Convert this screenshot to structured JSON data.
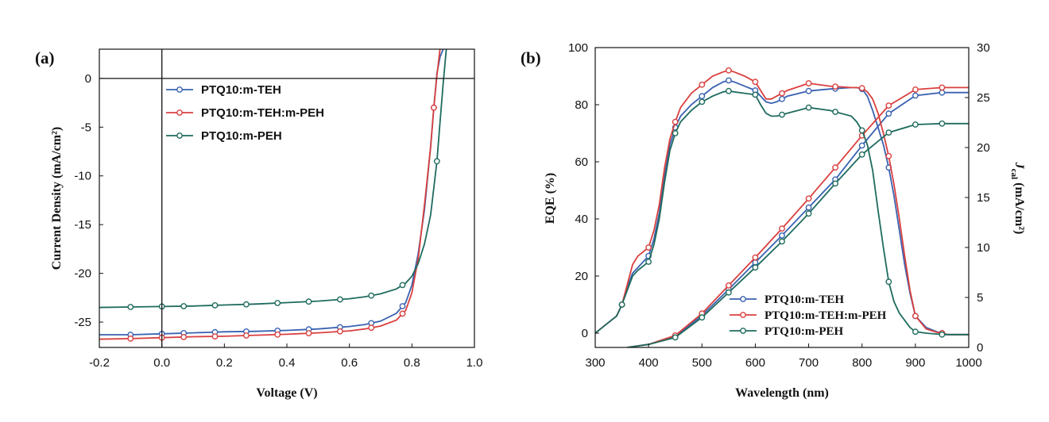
{
  "chart_data": [
    {
      "type": "line",
      "panel_label": "(a)",
      "xlabel": "Voltage (V)",
      "ylabel": "Current Density (mA/cm²)",
      "xlim": [
        -0.2,
        1.0
      ],
      "ylim": [
        -27.6,
        3.0
      ],
      "xticks": [
        -0.2,
        0.0,
        0.2,
        0.4,
        0.6,
        0.8,
        1.0
      ],
      "xtick_labels": [
        "-0.2",
        "0.0",
        "0.2",
        "0.4",
        "0.6",
        "0.8",
        "1.0"
      ],
      "yticks": [
        0,
        -5,
        -10,
        -15,
        -20,
        -25
      ],
      "ytick_labels": [
        "0",
        "-5",
        "-10",
        "-15",
        "-20",
        "-25"
      ],
      "reference_lines": {
        "x": 0,
        "y": 0
      },
      "legend_position": "upper-middle",
      "series": [
        {
          "name": "PTQ10:m-TEH",
          "color": "#3a62b0",
          "x": [
            -0.2,
            -0.1,
            0,
            0.1,
            0.2,
            0.3,
            0.4,
            0.5,
            0.6,
            0.65,
            0.7,
            0.75,
            0.78,
            0.8,
            0.82,
            0.84,
            0.86,
            0.87,
            0.88,
            0.89,
            0.9
          ],
          "y": [
            -26.3,
            -26.3,
            -26.2,
            -26.1,
            -26.0,
            -25.95,
            -25.85,
            -25.7,
            -25.45,
            -25.25,
            -24.9,
            -24.1,
            -23.0,
            -21.2,
            -18.0,
            -13.5,
            -7.0,
            -3.0,
            0.5,
            2.2,
            3.0
          ],
          "marker_x": [
            -0.1,
            0.0,
            0.07,
            0.17,
            0.27,
            0.37,
            0.47,
            0.57,
            0.67,
            0.77,
            0.87
          ]
        },
        {
          "name": "PTQ10:m-TEH:m-PEH",
          "color": "#d9403f",
          "x": [
            -0.2,
            -0.1,
            0,
            0.1,
            0.2,
            0.3,
            0.4,
            0.5,
            0.6,
            0.65,
            0.7,
            0.75,
            0.78,
            0.8,
            0.82,
            0.84,
            0.86,
            0.87,
            0.88,
            0.89
          ],
          "y": [
            -26.75,
            -26.7,
            -26.6,
            -26.5,
            -26.45,
            -26.35,
            -26.25,
            -26.1,
            -25.9,
            -25.7,
            -25.4,
            -24.8,
            -23.8,
            -22.0,
            -18.5,
            -13.0,
            -7.0,
            -3.0,
            0.3,
            3.0
          ],
          "marker_x": [
            -0.1,
            0.0,
            0.07,
            0.17,
            0.27,
            0.37,
            0.47,
            0.57,
            0.67,
            0.77,
            0.87
          ]
        },
        {
          "name": "PTQ10:m-PEH",
          "color": "#1f6b5e",
          "x": [
            -0.2,
            -0.1,
            0,
            0.1,
            0.2,
            0.3,
            0.4,
            0.5,
            0.6,
            0.65,
            0.7,
            0.75,
            0.78,
            0.8,
            0.82,
            0.84,
            0.86,
            0.88,
            0.89,
            0.9,
            0.91
          ],
          "y": [
            -23.5,
            -23.45,
            -23.4,
            -23.35,
            -23.25,
            -23.15,
            -23.0,
            -22.85,
            -22.6,
            -22.4,
            -22.1,
            -21.6,
            -21.0,
            -20.3,
            -19.0,
            -17.0,
            -14.0,
            -8.5,
            -4.5,
            -0.5,
            3.0
          ],
          "marker_x": [
            -0.1,
            0.0,
            0.07,
            0.17,
            0.27,
            0.37,
            0.47,
            0.57,
            0.67,
            0.77,
            0.88
          ]
        }
      ]
    },
    {
      "type": "line",
      "panel_label": "(b)",
      "xlabel": "Wavelength (nm)",
      "ylabel": "EQE (%)",
      "y2label": "J",
      "y2label_sub": "cal",
      "y2label_unit": " (mA/cm²)",
      "xlim": [
        300,
        1000
      ],
      "ylim": [
        -5,
        100
      ],
      "y2lim": [
        0,
        30
      ],
      "xticks": [
        300,
        400,
        500,
        600,
        700,
        800,
        900,
        1000
      ],
      "xtick_labels": [
        "300",
        "400",
        "500",
        "600",
        "700",
        "800",
        "900",
        "1000"
      ],
      "yticks": [
        0,
        20,
        40,
        60,
        80,
        100
      ],
      "ytick_labels": [
        "0",
        "20",
        "40",
        "60",
        "80",
        "100"
      ],
      "y2ticks": [
        0,
        5,
        10,
        15,
        20,
        25,
        30
      ],
      "y2tick_labels": [
        "0",
        "5",
        "10",
        "15",
        "20",
        "25",
        "30"
      ],
      "legend_position": "lower-middle",
      "series": [
        {
          "name": "PTQ10:m-TEH",
          "color": "#3a62b0",
          "x": [
            300,
            320,
            340,
            350,
            360,
            370,
            380,
            400,
            410,
            420,
            430,
            440,
            450,
            460,
            480,
            500,
            520,
            540,
            550,
            560,
            580,
            600,
            610,
            620,
            630,
            640,
            650,
            660,
            700,
            740,
            780,
            790,
            800,
            810,
            820,
            830,
            840,
            850,
            860,
            870,
            880,
            890,
            900,
            920,
            940,
            950,
            960,
            1000
          ],
          "eqe": [
            0,
            3,
            6,
            10,
            16,
            21,
            23,
            27,
            33,
            42,
            55,
            66,
            72,
            76,
            80,
            83,
            86,
            88,
            88.5,
            88,
            86.5,
            85,
            83,
            81,
            80.5,
            81,
            82,
            83,
            84.8,
            85.5,
            86,
            86,
            85.5,
            83,
            78,
            72,
            66,
            58,
            48,
            36,
            24,
            14,
            6,
            2,
            0.5,
            0,
            -0.5,
            -0.5
          ],
          "eqe_marker_x": [
            350,
            400,
            450,
            500,
            550,
            600,
            650,
            700,
            750,
            800,
            850,
            900,
            950
          ],
          "jcal_x": [
            360,
            400,
            450,
            500,
            550,
            600,
            650,
            700,
            750,
            800,
            850,
            900,
            950,
            1000
          ],
          "jcal": [
            0,
            0.3,
            1.1,
            3.2,
            5.8,
            8.5,
            11.2,
            14.0,
            16.8,
            20.2,
            23.4,
            25.2,
            25.5,
            25.5
          ],
          "jcal_marker_x": [
            450,
            500,
            550,
            600,
            650,
            700,
            750,
            800,
            850,
            900,
            950
          ]
        },
        {
          "name": "PTQ10:m-TEH:m-PEH",
          "color": "#d9403f",
          "x": [
            300,
            320,
            340,
            350,
            360,
            370,
            380,
            400,
            410,
            420,
            430,
            440,
            450,
            460,
            480,
            500,
            520,
            540,
            550,
            560,
            580,
            600,
            610,
            620,
            630,
            640,
            650,
            660,
            700,
            740,
            780,
            790,
            800,
            810,
            820,
            830,
            840,
            850,
            860,
            870,
            880,
            890,
            900,
            920,
            940,
            950,
            960,
            1000
          ],
          "eqe": [
            0,
            3,
            6,
            10,
            17,
            24,
            27,
            30,
            36,
            45,
            58,
            68,
            74,
            79,
            84,
            87,
            90,
            91.5,
            92,
            91.5,
            90,
            88,
            85,
            82,
            82,
            83,
            84,
            85,
            87.5,
            86.5,
            86,
            86,
            85.8,
            84.5,
            82,
            77,
            70,
            62,
            52,
            40,
            27,
            15,
            6,
            1.5,
            0.3,
            0,
            -0.5,
            -0.5
          ],
          "eqe_marker_x": [
            350,
            400,
            450,
            500,
            550,
            600,
            650,
            700,
            750,
            800,
            850,
            900,
            950
          ],
          "jcal_x": [
            360,
            400,
            450,
            500,
            550,
            600,
            650,
            700,
            750,
            800,
            850,
            900,
            950,
            1000
          ],
          "jcal": [
            0,
            0.3,
            1.2,
            3.4,
            6.2,
            9.0,
            11.9,
            14.9,
            18.0,
            21.2,
            24.2,
            25.8,
            26.0,
            26.0
          ],
          "jcal_marker_x": [
            450,
            500,
            550,
            600,
            650,
            700,
            750,
            800,
            850,
            900,
            950
          ]
        },
        {
          "name": "PTQ10:m-PEH",
          "color": "#1f6b5e",
          "x": [
            300,
            320,
            340,
            350,
            360,
            370,
            380,
            400,
            410,
            420,
            430,
            440,
            450,
            460,
            480,
            500,
            520,
            540,
            550,
            560,
            580,
            600,
            610,
            620,
            630,
            640,
            650,
            660,
            700,
            740,
            780,
            790,
            800,
            810,
            820,
            830,
            840,
            850,
            860,
            870,
            880,
            890,
            900,
            920,
            940,
            950,
            960,
            1000
          ],
          "eqe": [
            0,
            3,
            6,
            10,
            15,
            20,
            22,
            25,
            31,
            40,
            53,
            64,
            70,
            74,
            78,
            81,
            83,
            84.5,
            84.8,
            84.5,
            84,
            83.5,
            80,
            77,
            76,
            76,
            76.5,
            77,
            79,
            78,
            76,
            74,
            71,
            66,
            57,
            43,
            30,
            18,
            11,
            7,
            4.5,
            2,
            0.5,
            0,
            -0.3,
            -0.5,
            -0.5,
            -0.5
          ],
          "eqe_marker_x": [
            350,
            400,
            450,
            500,
            550,
            600,
            650,
            700,
            750,
            800,
            850,
            900,
            950
          ],
          "jcal_x": [
            360,
            400,
            450,
            500,
            550,
            600,
            650,
            700,
            750,
            800,
            850,
            900,
            950,
            1000
          ],
          "jcal": [
            0,
            0.3,
            1.0,
            3.0,
            5.5,
            8.0,
            10.6,
            13.4,
            16.4,
            19.3,
            21.5,
            22.3,
            22.4,
            22.4
          ],
          "jcal_marker_x": [
            450,
            500,
            550,
            600,
            650,
            700,
            750,
            800,
            850,
            900,
            950
          ]
        }
      ]
    }
  ]
}
